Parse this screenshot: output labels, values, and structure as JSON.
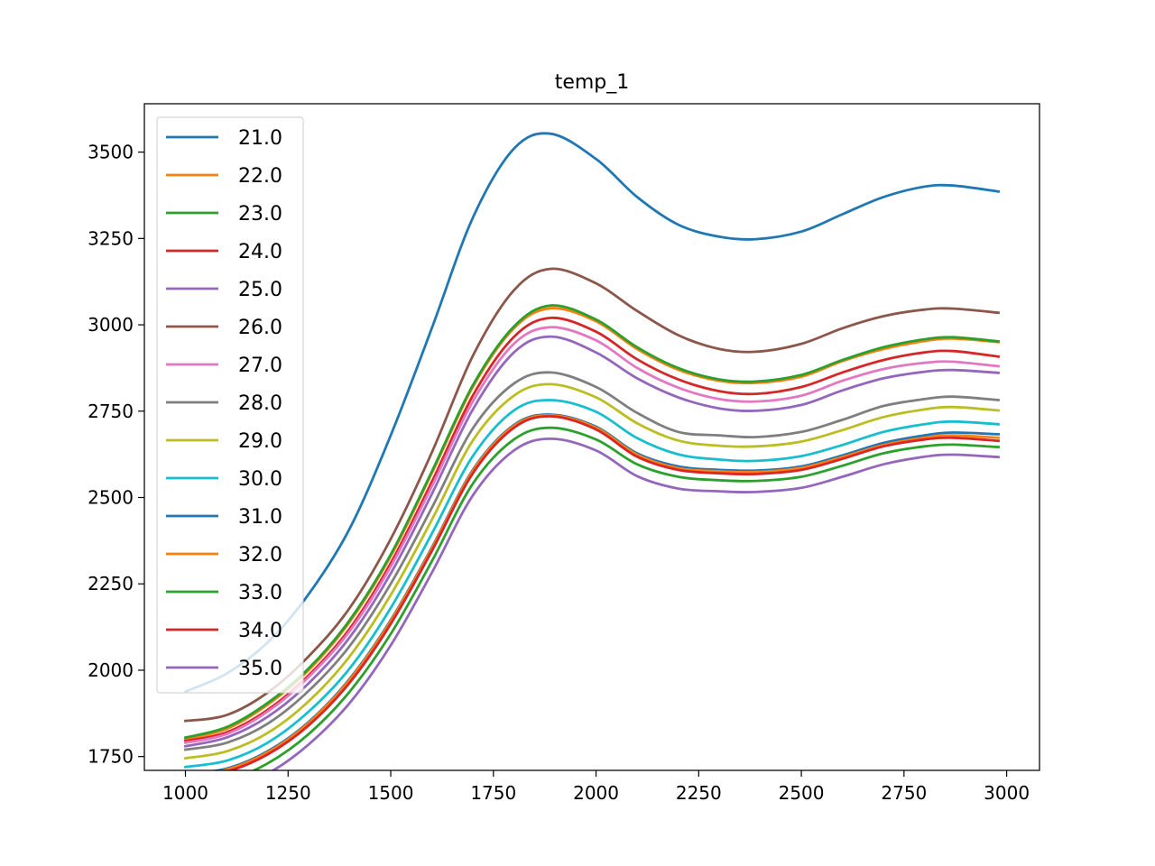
{
  "chart_data": {
    "type": "line",
    "title": "temp_1",
    "xlabel": "",
    "ylabel": "",
    "xlim": [
      900,
      3080
    ],
    "ylim": [
      1710,
      3640
    ],
    "xticks": [
      "1000",
      "1250",
      "1500",
      "1750",
      "2000",
      "2250",
      "2500",
      "2750",
      "3000"
    ],
    "yticks": [
      "1750",
      "2000",
      "2250",
      "2500",
      "2750",
      "3000",
      "3250",
      "3500"
    ],
    "legend_position": "upper-left",
    "grid": false,
    "x": [
      1000,
      1100,
      1200,
      1300,
      1400,
      1500,
      1600,
      1700,
      1800,
      1890,
      2000,
      2100,
      2200,
      2300,
      2390,
      2500,
      2600,
      2700,
      2800,
      2870,
      2980
    ],
    "series": [
      {
        "name": "21.0",
        "color": "#1f77b4",
        "values": [
          1938,
          1990,
          2080,
          2220,
          2410,
          2680,
          2990,
          3310,
          3510,
          3553,
          3480,
          3370,
          3290,
          3255,
          3248,
          3270,
          3320,
          3370,
          3400,
          3403,
          3386
        ]
      },
      {
        "name": "22.0",
        "color": "#ff7f0e",
        "values": [
          1800,
          1830,
          1900,
          2000,
          2140,
          2330,
          2570,
          2820,
          2990,
          3048,
          3010,
          2930,
          2870,
          2838,
          2832,
          2850,
          2895,
          2930,
          2953,
          2960,
          2950
        ]
      },
      {
        "name": "23.0",
        "color": "#2ca02c",
        "values": [
          1805,
          1835,
          1905,
          2005,
          2145,
          2335,
          2575,
          2825,
          2995,
          3056,
          3015,
          2935,
          2875,
          2842,
          2836,
          2855,
          2898,
          2935,
          2958,
          2964,
          2952
        ]
      },
      {
        "name": "24.0",
        "color": "#d62728",
        "values": [
          1795,
          1820,
          1885,
          1985,
          2120,
          2310,
          2545,
          2795,
          2965,
          3020,
          2980,
          2900,
          2842,
          2808,
          2800,
          2820,
          2862,
          2898,
          2920,
          2924,
          2908
        ]
      },
      {
        "name": "25.0",
        "color": "#9467bd",
        "values": [
          1780,
          1805,
          1865,
          1962,
          2095,
          2280,
          2510,
          2755,
          2920,
          2966,
          2920,
          2845,
          2790,
          2758,
          2751,
          2768,
          2810,
          2845,
          2864,
          2869,
          2861
        ]
      },
      {
        "name": "26.0",
        "color": "#8c564b",
        "values": [
          1853,
          1870,
          1935,
          2040,
          2180,
          2380,
          2630,
          2910,
          3100,
          3162,
          3120,
          3040,
          2970,
          2930,
          2922,
          2945,
          2990,
          3025,
          3044,
          3047,
          3035
        ]
      },
      {
        "name": "27.0",
        "color": "#e377c2",
        "values": [
          1790,
          1815,
          1880,
          1980,
          2113,
          2300,
          2532,
          2778,
          2945,
          2993,
          2955,
          2875,
          2818,
          2785,
          2778,
          2795,
          2838,
          2872,
          2890,
          2893,
          2880
        ]
      },
      {
        "name": "28.0",
        "color": "#7f7f7f",
        "values": [
          1770,
          1790,
          1845,
          1940,
          2070,
          2250,
          2470,
          2700,
          2830,
          2862,
          2820,
          2745,
          2690,
          2680,
          2675,
          2690,
          2725,
          2765,
          2785,
          2792,
          2782
        ]
      },
      {
        "name": "29.0",
        "color": "#bcbd22",
        "values": [
          1745,
          1765,
          1818,
          1910,
          2040,
          2218,
          2435,
          2665,
          2795,
          2828,
          2790,
          2715,
          2665,
          2650,
          2648,
          2662,
          2695,
          2733,
          2755,
          2762,
          2752
        ]
      },
      {
        "name": "30.0",
        "color": "#17becf",
        "values": [
          1720,
          1738,
          1790,
          1880,
          2005,
          2180,
          2395,
          2620,
          2752,
          2782,
          2748,
          2672,
          2625,
          2610,
          2606,
          2620,
          2652,
          2690,
          2712,
          2720,
          2712
        ]
      },
      {
        "name": "31.0",
        "color": "#1f77b4",
        "values": [
          1700,
          1715,
          1765,
          1850,
          1975,
          2145,
          2355,
          2580,
          2710,
          2740,
          2705,
          2628,
          2590,
          2580,
          2578,
          2590,
          2622,
          2658,
          2680,
          2688,
          2683
        ]
      },
      {
        "name": "32.0",
        "color": "#ff7f0e",
        "values": [
          1697,
          1712,
          1762,
          1847,
          1972,
          2142,
          2352,
          2577,
          2707,
          2738,
          2702,
          2624,
          2585,
          2576,
          2574,
          2586,
          2617,
          2652,
          2673,
          2680,
          2673
        ]
      },
      {
        "name": "33.0",
        "color": "#2ca02c",
        "values": [
          1660,
          1680,
          1730,
          1815,
          1938,
          2105,
          2315,
          2540,
          2668,
          2702,
          2668,
          2596,
          2560,
          2550,
          2548,
          2560,
          2592,
          2628,
          2648,
          2653,
          2646
        ]
      },
      {
        "name": "34.0",
        "color": "#d62728",
        "values": [
          1690,
          1706,
          1756,
          1840,
          1964,
          2134,
          2345,
          2570,
          2702,
          2735,
          2697,
          2618,
          2580,
          2570,
          2568,
          2580,
          2612,
          2648,
          2668,
          2673,
          2664
        ]
      },
      {
        "name": "35.0",
        "color": "#9467bd",
        "values": [
          1630,
          1650,
          1700,
          1785,
          1905,
          2072,
          2282,
          2506,
          2636,
          2670,
          2636,
          2562,
          2526,
          2518,
          2516,
          2528,
          2560,
          2596,
          2618,
          2624,
          2617
        ]
      }
    ]
  }
}
